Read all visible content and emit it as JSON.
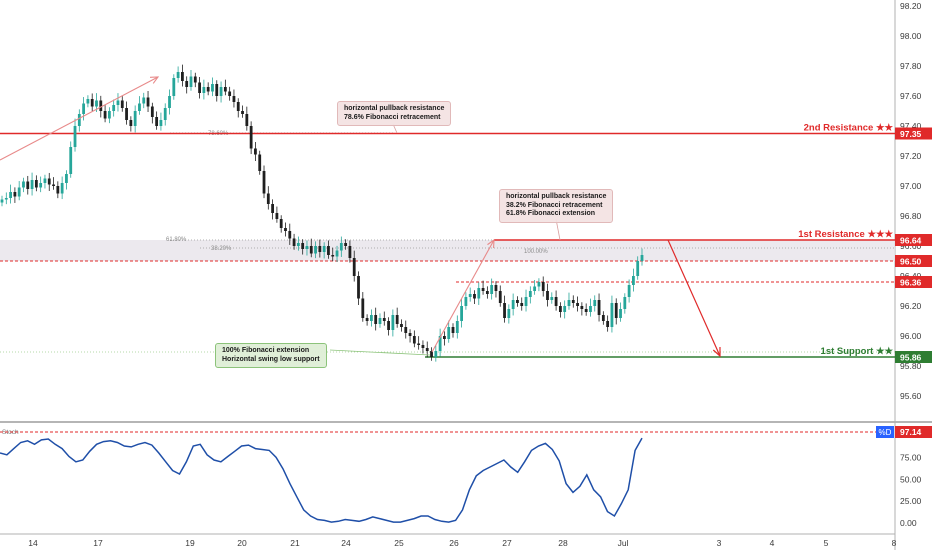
{
  "chart_data": [
    {
      "type": "candlestick",
      "y_axis": {
        "ticks": [
          "98.20",
          "98.00",
          "97.80",
          "97.60",
          "97.40",
          "97.20",
          "97.00",
          "96.80",
          "96.60",
          "96.40",
          "96.20",
          "96.00",
          "95.80",
          "95.60"
        ],
        "range": [
          95.4,
          98.25
        ]
      },
      "x_axis": {
        "ticks": [
          "14",
          "17",
          "19",
          "20",
          "21",
          "24",
          "25",
          "26",
          "27",
          "28",
          "Jul",
          "3",
          "4",
          "5",
          "8"
        ]
      },
      "colors": {
        "up": "#26a69a",
        "down": "#1f1f1f",
        "resistance": "#e02a2a",
        "support": "#2e7d32",
        "zone": "#e7e4ea"
      },
      "horizontal_levels": [
        {
          "name": "2nd Resistance",
          "value": 97.35,
          "label": "2nd Resistance ★★",
          "price_label": "97.35",
          "style": "solid",
          "color": "#e02a2a"
        },
        {
          "name": "1st Resistance",
          "value": 96.64,
          "label": "1st Resistance ★★★",
          "price_label": "96.64",
          "style": "solid",
          "color": "#e02a2a"
        },
        {
          "name": "level",
          "value": 96.5,
          "price_label": "96.50",
          "style": "dashed",
          "color": "#e02a2a"
        },
        {
          "name": "level",
          "value": 96.36,
          "price_label": "96.36",
          "style": "dashed",
          "color": "#e02a2a"
        },
        {
          "name": "1st Support",
          "value": 95.86,
          "label": "1st Support ★★",
          "price_label": "95.86",
          "style": "solid",
          "color": "#2e7d32"
        }
      ],
      "fib_labels": [
        "78.60%",
        "61.80%",
        "38.20%",
        "100.00%"
      ],
      "annotations": [
        {
          "lines": [
            "horizontal pullback resistance",
            "78.6% Fibonacci retracement"
          ]
        },
        {
          "lines": [
            "horizontal pullback resistance",
            "38.2% Fibonacci retracement",
            "61.8% Fibonacci extension"
          ]
        },
        {
          "lines": [
            "100% Fibonacci extension",
            "Horizontal swing low support"
          ]
        }
      ],
      "closes": [
        96.91,
        96.92,
        96.96,
        96.93,
        96.99,
        97.03,
        96.98,
        97.04,
        96.99,
        97.02,
        97.05,
        97.01,
        97.0,
        96.95,
        97.02,
        97.08,
        97.26,
        97.4,
        97.48,
        97.55,
        97.58,
        97.53,
        97.57,
        97.5,
        97.45,
        97.5,
        97.54,
        97.57,
        97.52,
        97.44,
        97.4,
        97.5,
        97.55,
        97.59,
        97.53,
        97.46,
        97.4,
        97.44,
        97.52,
        97.6,
        97.72,
        97.76,
        97.7,
        97.66,
        97.73,
        97.69,
        97.62,
        97.66,
        97.63,
        97.68,
        97.6,
        97.66,
        97.63,
        97.6,
        97.56,
        97.5,
        97.48,
        97.4,
        97.25,
        97.21,
        97.1,
        96.95,
        96.88,
        96.82,
        96.78,
        96.72,
        96.7,
        96.65,
        96.6,
        96.62,
        96.58,
        96.6,
        96.55,
        96.6,
        96.56,
        96.6,
        96.54,
        96.53,
        96.57,
        96.62,
        96.6,
        96.52,
        96.4,
        96.25,
        96.12,
        96.1,
        96.14,
        96.08,
        96.12,
        96.1,
        96.04,
        96.14,
        96.08,
        96.06,
        96.02,
        96.0,
        95.95,
        95.94,
        95.92,
        95.9,
        95.86,
        95.9,
        96.0,
        95.98,
        96.06,
        96.02,
        96.1,
        96.2,
        96.26,
        96.28,
        96.25,
        96.32,
        96.3,
        96.28,
        96.34,
        96.3,
        96.22,
        96.12,
        96.18,
        96.24,
        96.22,
        96.2,
        96.26,
        96.3,
        96.33,
        96.36,
        96.3,
        96.24,
        96.26,
        96.2,
        96.16,
        96.2,
        96.24,
        96.22,
        96.2,
        96.18,
        96.16,
        96.2,
        96.24,
        96.14,
        96.1,
        96.06,
        96.22,
        96.12,
        96.18,
        96.26,
        96.34,
        96.4,
        96.5,
        96.54
      ]
    },
    {
      "type": "line",
      "title": "Stoch",
      "series": [
        {
          "name": "%D",
          "values": [
            80,
            78,
            85,
            92,
            94,
            90,
            95,
            96,
            90,
            85,
            76,
            70,
            72,
            82,
            90,
            93,
            94,
            92,
            88,
            87,
            90,
            92,
            89,
            80,
            70,
            60,
            56,
            70,
            88,
            90,
            78,
            72,
            70,
            76,
            82,
            88,
            89,
            85,
            84,
            83,
            75,
            62,
            45,
            30,
            15,
            8,
            4,
            3,
            1,
            2,
            4,
            3,
            2,
            4,
            7,
            5,
            3,
            1,
            1,
            3,
            5,
            8,
            8,
            4,
            2,
            1,
            3,
            15,
            38,
            54,
            60,
            64,
            68,
            72,
            64,
            58,
            70,
            83,
            88,
            91,
            84,
            71,
            45,
            35,
            42,
            55,
            38,
            30,
            13,
            8,
            22,
            38,
            83,
            97
          ]
        }
      ],
      "y_axis": {
        "ticks": [
          "75.00",
          "50.00",
          "25.00",
          "0.00"
        ],
        "range": [
          -5,
          100
        ]
      },
      "price_label": "97.14",
      "tag": "%D"
    }
  ]
}
